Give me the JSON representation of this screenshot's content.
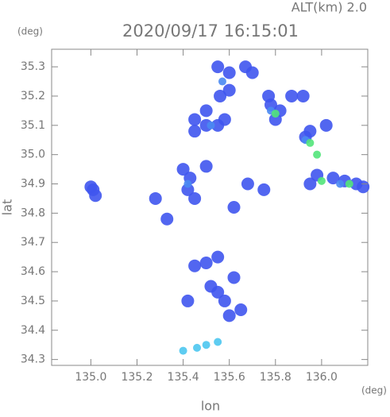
{
  "chart_data": {
    "type": "scatter",
    "title": "2020/09/17 16:15:01",
    "subtitle": "ALT(km) 2.0",
    "x_label": "lon",
    "y_label": "lat",
    "x_unit": "(deg)",
    "y_unit": "(deg)",
    "xlim": [
      134.83,
      136.2
    ],
    "ylim": [
      34.28,
      35.36
    ],
    "xticks": [
      {
        "value": 135,
        "label": "135.0"
      },
      135.2,
      135.4,
      135.6,
      135.8,
      {
        "value": 136,
        "label": "136.0"
      }
    ],
    "yticks": [
      34.3,
      34.4,
      34.5,
      34.6,
      34.7,
      34.8,
      34.9,
      {
        "value": 35,
        "label": "35.0"
      },
      35.1,
      35.2,
      35.3
    ],
    "grid": false,
    "series": [
      {
        "color": "#3f55ee",
        "x": [
          135.01,
          135.02,
          135.0,
          135.55,
          135.6,
          135.67,
          135.7,
          135.56,
          135.6,
          135.5,
          135.45,
          135.5,
          135.55,
          135.58,
          135.45,
          135.78,
          135.82,
          135.8,
          135.77,
          135.87,
          135.92,
          135.95,
          135.93,
          136.02,
          135.95,
          136.05,
          136.1,
          136.15,
          136.18,
          135.98,
          135.4,
          135.43,
          135.42,
          135.45,
          135.5,
          135.55,
          135.52,
          135.58,
          135.5,
          135.55,
          135.45,
          135.62,
          135.6,
          135.65,
          135.28,
          135.33,
          135.62,
          135.68,
          135.75,
          135.42
        ],
        "y": [
          34.88,
          34.86,
          34.89,
          35.3,
          35.28,
          35.3,
          35.28,
          35.2,
          35.22,
          35.15,
          35.12,
          35.1,
          35.1,
          35.12,
          35.08,
          35.17,
          35.15,
          35.12,
          35.2,
          35.2,
          35.2,
          35.08,
          35.06,
          35.1,
          34.9,
          34.92,
          34.91,
          34.9,
          34.89,
          34.93,
          34.95,
          34.92,
          34.88,
          34.85,
          34.96,
          34.53,
          34.55,
          34.5,
          34.63,
          34.65,
          34.62,
          34.58,
          34.45,
          34.47,
          34.85,
          34.78,
          34.82,
          34.9,
          34.88,
          34.5
        ]
      },
      {
        "color": "#4a8af2",
        "x": [
          135.57,
          135.52,
          135.78,
          136.08,
          135.93,
          135.42
        ],
        "y": [
          35.25,
          35.1,
          35.15,
          34.9,
          35.05,
          34.9
        ]
      },
      {
        "color": "#4cc6f0",
        "x": [
          135.4,
          135.46,
          135.5,
          135.55
        ],
        "y": [
          34.33,
          34.34,
          34.35,
          34.36
        ]
      },
      {
        "color": "#52e47a",
        "x": [
          135.8,
          136.0,
          136.12,
          135.98,
          135.95
        ],
        "y": [
          35.14,
          34.91,
          34.9,
          35.0,
          35.04
        ]
      }
    ]
  }
}
